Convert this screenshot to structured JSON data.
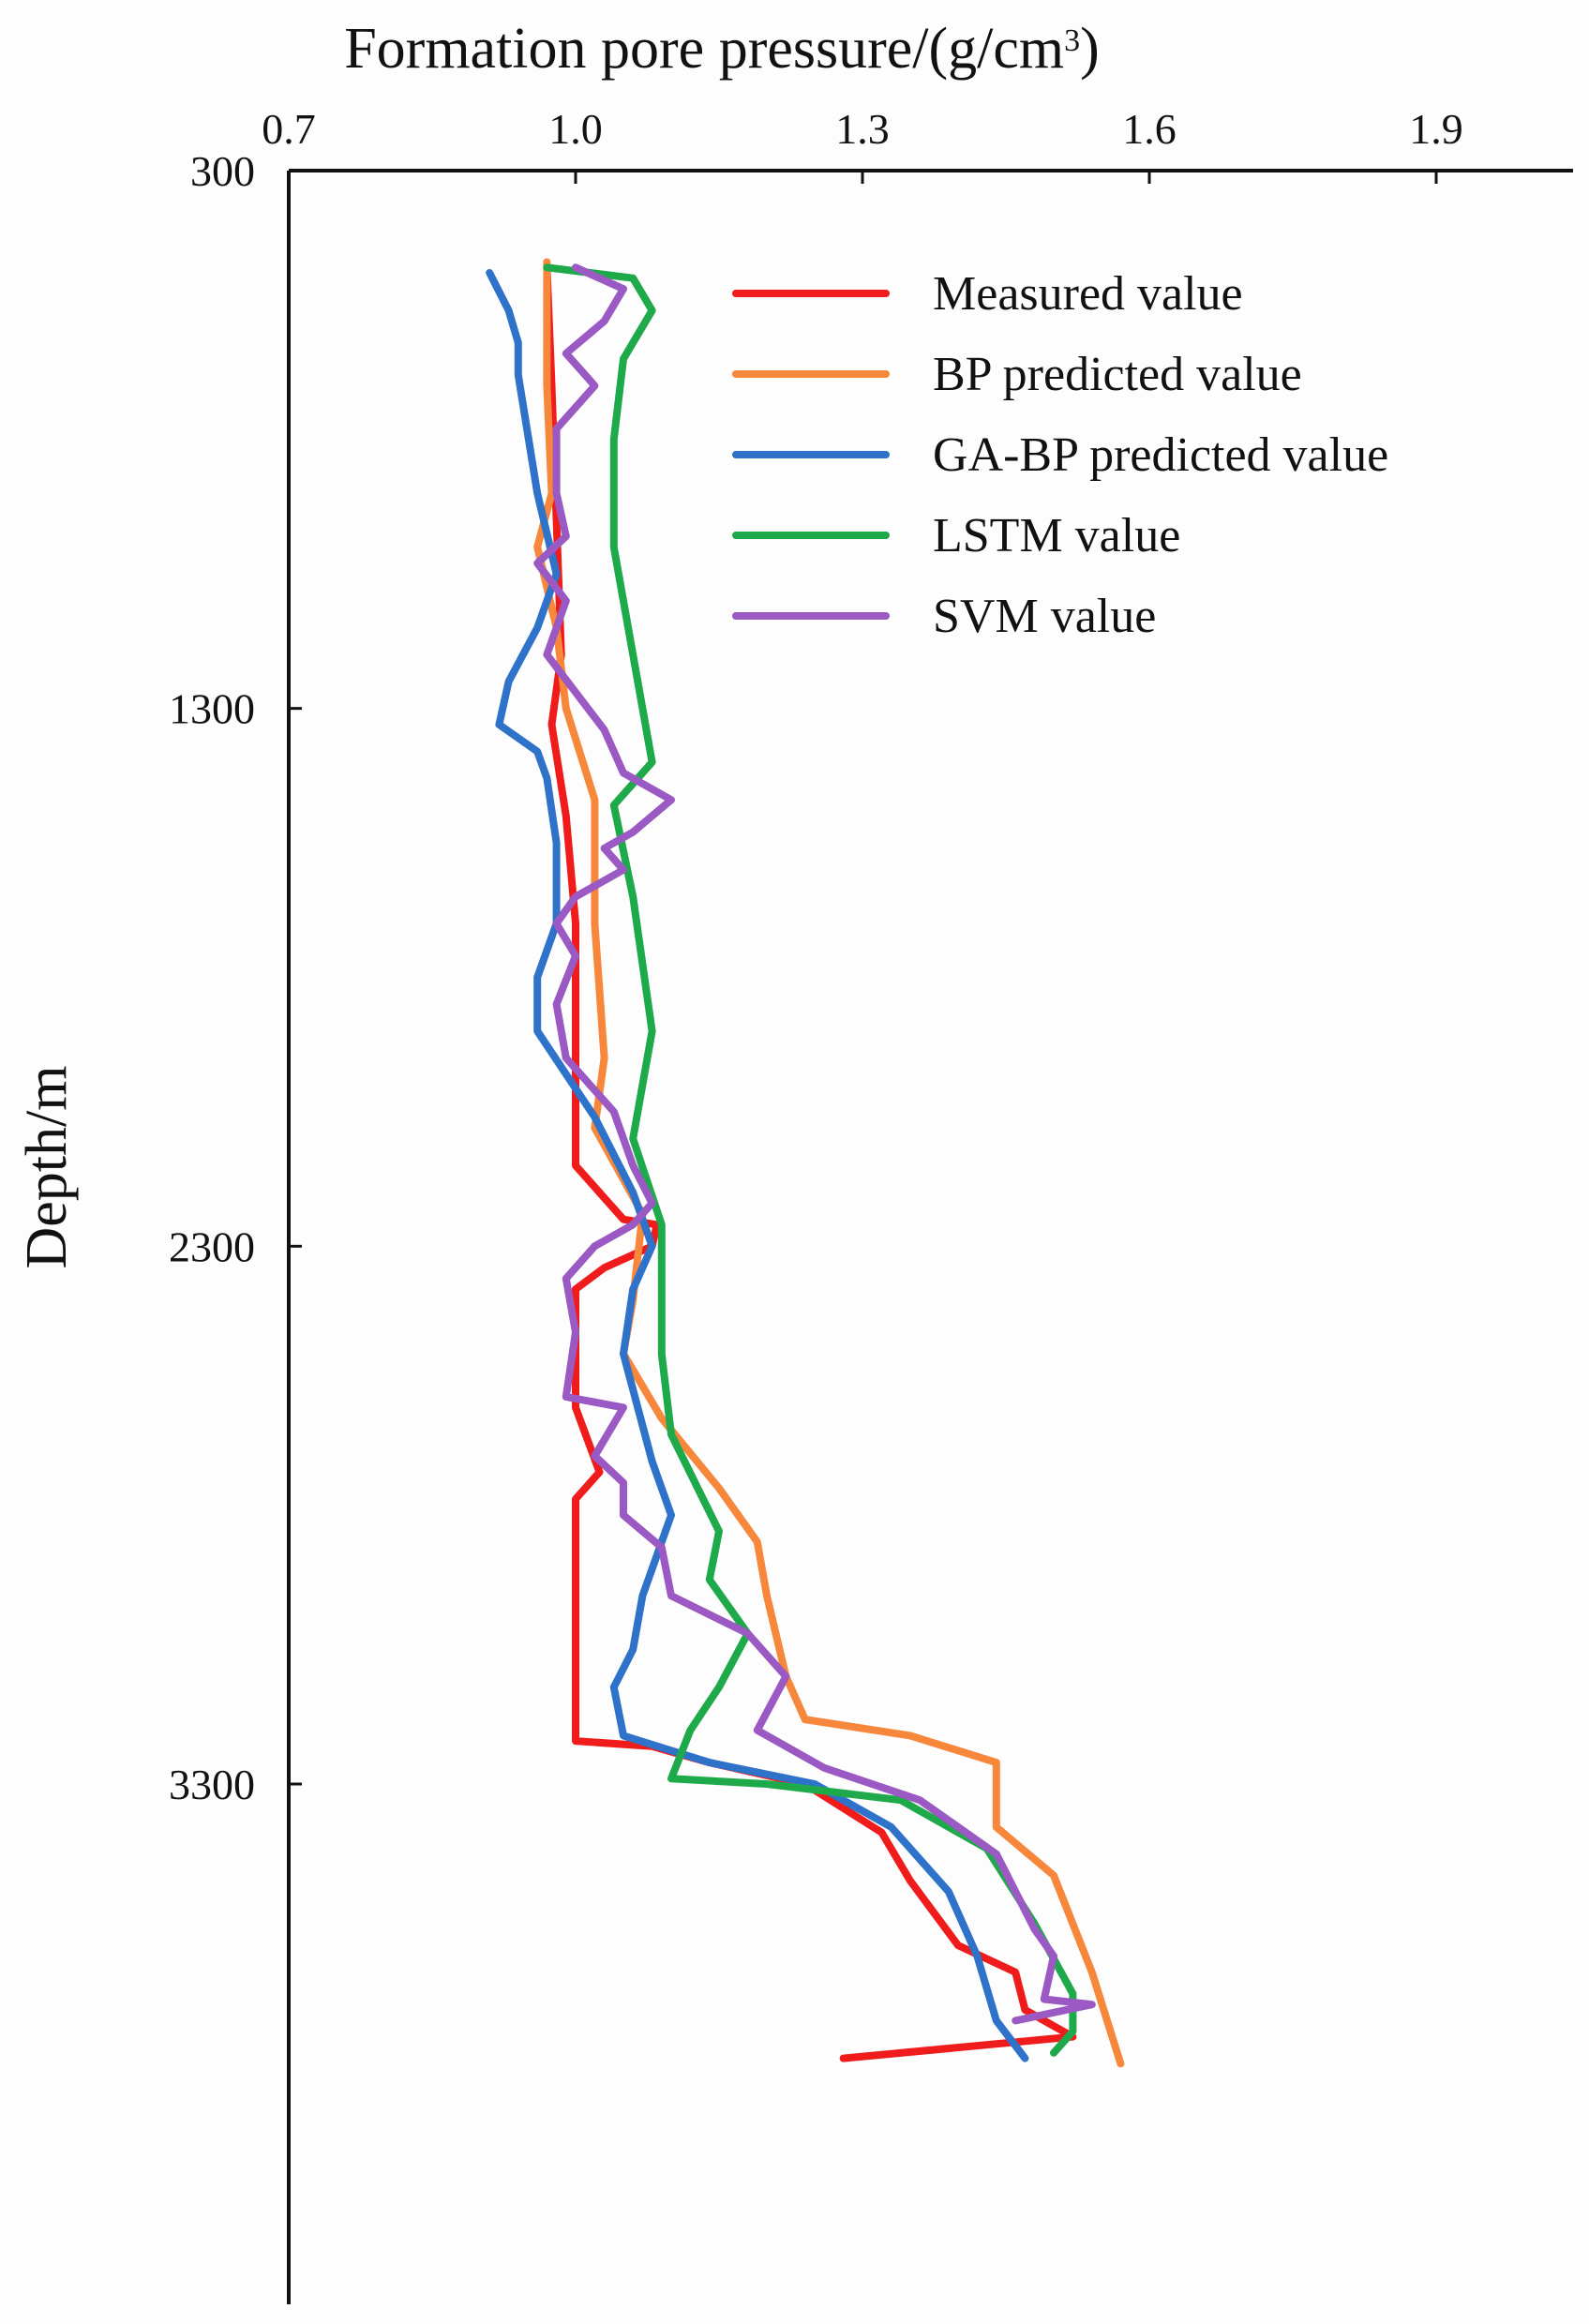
{
  "chart_data": {
    "type": "line",
    "title": "Formation pore pressure/(g/cm",
    "title_sup": "3",
    "title_end": ")",
    "xlabel": "Formation pore pressure/(g/cm³)",
    "ylabel": "Depth/m",
    "x_axis_position": "top",
    "y_inverted": true,
    "xlim": [
      0.7,
      2.05
    ],
    "ylim": [
      300,
      4350
    ],
    "xticks": [
      0.7,
      1.0,
      1.3,
      1.6,
      1.9
    ],
    "xtick_labels": [
      "0.7",
      "1.0",
      "1.3",
      "1.6",
      "1.9"
    ],
    "yticks": [
      300,
      1300,
      2300,
      3300
    ],
    "ytick_labels": [
      "300",
      "1300",
      "2300",
      "3300"
    ],
    "grid": false,
    "legend_position": "top-right",
    "series": [
      {
        "name": "Measured value",
        "color": "#f01c1c",
        "points": [
          [
            0.97,
            480
          ],
          [
            0.975,
            700
          ],
          [
            0.98,
            950
          ],
          [
            0.985,
            1200
          ],
          [
            0.975,
            1330
          ],
          [
            0.99,
            1500
          ],
          [
            1.0,
            1700
          ],
          [
            1.0,
            1950
          ],
          [
            1.0,
            2150
          ],
          [
            1.05,
            2250
          ],
          [
            1.085,
            2260
          ],
          [
            1.08,
            2300
          ],
          [
            1.03,
            2340
          ],
          [
            1.0,
            2380
          ],
          [
            1.0,
            2450
          ],
          [
            1.0,
            2600
          ],
          [
            1.025,
            2720
          ],
          [
            1.0,
            2770
          ],
          [
            1.0,
            3000
          ],
          [
            1.0,
            3100
          ],
          [
            1.0,
            3220
          ],
          [
            1.08,
            3230
          ],
          [
            1.14,
            3260
          ],
          [
            1.24,
            3300
          ],
          [
            1.32,
            3390
          ],
          [
            1.35,
            3480
          ],
          [
            1.4,
            3600
          ],
          [
            1.46,
            3650
          ],
          [
            1.47,
            3720
          ],
          [
            1.52,
            3770
          ],
          [
            1.28,
            3810
          ]
        ]
      },
      {
        "name": "BP predicted value",
        "color": "#f7873a",
        "points": [
          [
            0.97,
            470
          ],
          [
            0.97,
            700
          ],
          [
            0.975,
            900
          ],
          [
            0.96,
            1000
          ],
          [
            0.98,
            1150
          ],
          [
            0.99,
            1300
          ],
          [
            1.02,
            1470
          ],
          [
            1.02,
            1700
          ],
          [
            1.03,
            1950
          ],
          [
            1.02,
            2080
          ],
          [
            1.07,
            2240
          ],
          [
            1.06,
            2400
          ],
          [
            1.05,
            2500
          ],
          [
            1.09,
            2620
          ],
          [
            1.15,
            2750
          ],
          [
            1.19,
            2850
          ],
          [
            1.2,
            2950
          ],
          [
            1.22,
            3100
          ],
          [
            1.24,
            3180
          ],
          [
            1.35,
            3210
          ],
          [
            1.44,
            3260
          ],
          [
            1.44,
            3380
          ],
          [
            1.5,
            3470
          ],
          [
            1.54,
            3650
          ],
          [
            1.57,
            3820
          ]
        ]
      },
      {
        "name": "GA-BP predicted value",
        "color": "#2e73c9",
        "points": [
          [
            0.91,
            490
          ],
          [
            0.93,
            560
          ],
          [
            0.94,
            620
          ],
          [
            0.94,
            680
          ],
          [
            0.95,
            790
          ],
          [
            0.96,
            900
          ],
          [
            0.98,
            1050
          ],
          [
            0.96,
            1150
          ],
          [
            0.93,
            1250
          ],
          [
            0.92,
            1330
          ],
          [
            0.96,
            1380
          ],
          [
            0.97,
            1430
          ],
          [
            0.98,
            1550
          ],
          [
            0.98,
            1700
          ],
          [
            0.96,
            1800
          ],
          [
            0.96,
            1900
          ],
          [
            0.99,
            1980
          ],
          [
            1.02,
            2060
          ],
          [
            1.06,
            2200
          ],
          [
            1.08,
            2300
          ],
          [
            1.06,
            2380
          ],
          [
            1.05,
            2500
          ],
          [
            1.08,
            2700
          ],
          [
            1.1,
            2800
          ],
          [
            1.07,
            2950
          ],
          [
            1.06,
            3050
          ],
          [
            1.04,
            3120
          ],
          [
            1.05,
            3210
          ],
          [
            1.14,
            3260
          ],
          [
            1.25,
            3300
          ],
          [
            1.33,
            3380
          ],
          [
            1.39,
            3500
          ],
          [
            1.42,
            3620
          ],
          [
            1.44,
            3740
          ],
          [
            1.47,
            3810
          ]
        ]
      },
      {
        "name": "LSTM value",
        "color": "#1eaa4a",
        "points": [
          [
            0.97,
            480
          ],
          [
            1.06,
            500
          ],
          [
            1.08,
            560
          ],
          [
            1.05,
            650
          ],
          [
            1.04,
            800
          ],
          [
            1.04,
            1000
          ],
          [
            1.06,
            1200
          ],
          [
            1.08,
            1400
          ],
          [
            1.04,
            1480
          ],
          [
            1.06,
            1650
          ],
          [
            1.08,
            1900
          ],
          [
            1.06,
            2100
          ],
          [
            1.09,
            2260
          ],
          [
            1.09,
            2500
          ],
          [
            1.1,
            2650
          ],
          [
            1.15,
            2830
          ],
          [
            1.14,
            2920
          ],
          [
            1.18,
            3020
          ],
          [
            1.15,
            3120
          ],
          [
            1.12,
            3200
          ],
          [
            1.1,
            3290
          ],
          [
            1.2,
            3300
          ],
          [
            1.34,
            3330
          ],
          [
            1.43,
            3420
          ],
          [
            1.48,
            3560
          ],
          [
            1.52,
            3690
          ],
          [
            1.52,
            3760
          ],
          [
            1.5,
            3800
          ]
        ]
      },
      {
        "name": "SVM value",
        "color": "#9b59c4",
        "points": [
          [
            1.0,
            480
          ],
          [
            1.05,
            520
          ],
          [
            1.03,
            580
          ],
          [
            0.99,
            640
          ],
          [
            1.02,
            700
          ],
          [
            0.98,
            780
          ],
          [
            0.98,
            900
          ],
          [
            0.99,
            980
          ],
          [
            0.96,
            1030
          ],
          [
            0.99,
            1100
          ],
          [
            0.97,
            1200
          ],
          [
            1.03,
            1340
          ],
          [
            1.05,
            1420
          ],
          [
            1.1,
            1470
          ],
          [
            1.06,
            1530
          ],
          [
            1.03,
            1560
          ],
          [
            1.05,
            1600
          ],
          [
            1.0,
            1650
          ],
          [
            0.98,
            1700
          ],
          [
            1.0,
            1760
          ],
          [
            0.98,
            1850
          ],
          [
            0.99,
            1950
          ],
          [
            1.04,
            2050
          ],
          [
            1.06,
            2150
          ],
          [
            1.08,
            2220
          ],
          [
            1.06,
            2260
          ],
          [
            1.02,
            2300
          ],
          [
            0.99,
            2360
          ],
          [
            1.0,
            2460
          ],
          [
            0.99,
            2580
          ],
          [
            1.05,
            2600
          ],
          [
            1.02,
            2690
          ],
          [
            1.05,
            2740
          ],
          [
            1.05,
            2800
          ],
          [
            1.09,
            2860
          ],
          [
            1.1,
            2950
          ],
          [
            1.18,
            3020
          ],
          [
            1.22,
            3100
          ],
          [
            1.19,
            3200
          ],
          [
            1.26,
            3270
          ],
          [
            1.36,
            3330
          ],
          [
            1.44,
            3430
          ],
          [
            1.48,
            3570
          ],
          [
            1.5,
            3620
          ],
          [
            1.49,
            3700
          ],
          [
            1.54,
            3710
          ],
          [
            1.46,
            3740
          ]
        ]
      }
    ]
  }
}
